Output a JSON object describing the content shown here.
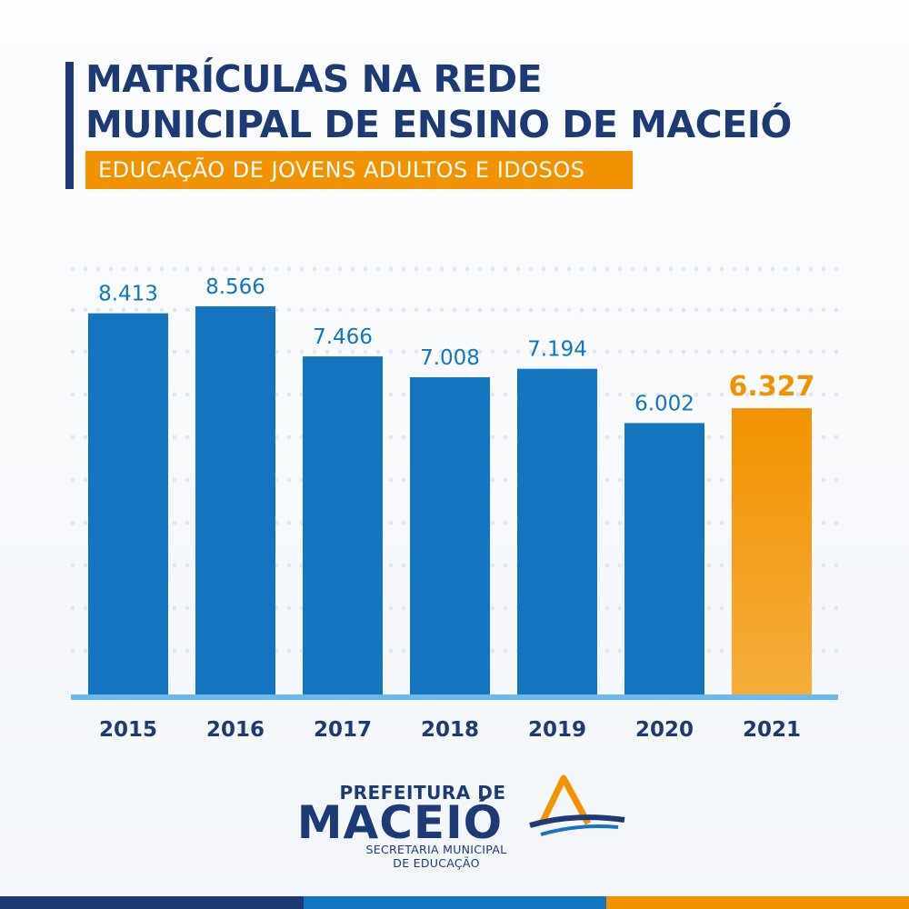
{
  "title_lines": [
    "MATRÍCULAS NA REDE",
    "MUNICIPAL DE ENSINO DE MACEIÓ"
  ],
  "subtitle": "EDUCAÇÃO DE JOVENS ADULTOS E IDOSOS",
  "colors": {
    "navy": "#1d3a74",
    "bar": "#1474bf",
    "highlight": "#f29200",
    "label": "#1474bf",
    "axis_line": "#6fb8ec",
    "dots": "#dfe7f2"
  },
  "chart_data": {
    "type": "bar",
    "title": "",
    "xlabel": "",
    "ylabel": "",
    "categories": [
      "2015",
      "2016",
      "2017",
      "2018",
      "2019",
      "2020",
      "2021"
    ],
    "values": [
      8413,
      8566,
      7466,
      7008,
      7194,
      6002,
      6327
    ],
    "data_labels": [
      "8.413",
      "8.566",
      "7.466",
      "7.008",
      "7.194",
      "6.002",
      "6.327"
    ],
    "highlight_category": "2021",
    "ylim": [
      0,
      8566
    ],
    "grid": "dotted",
    "legend": "none"
  },
  "footer": {
    "logo_top": "PREFEITURA DE",
    "logo_main": "MACEIÓ",
    "logo_sub_lines": [
      "SECRETARIA MUNICIPAL",
      "DE EDUCAÇÃO"
    ]
  },
  "stripe_colors": [
    "#1d3a74",
    "#1474bf",
    "#f29200"
  ]
}
